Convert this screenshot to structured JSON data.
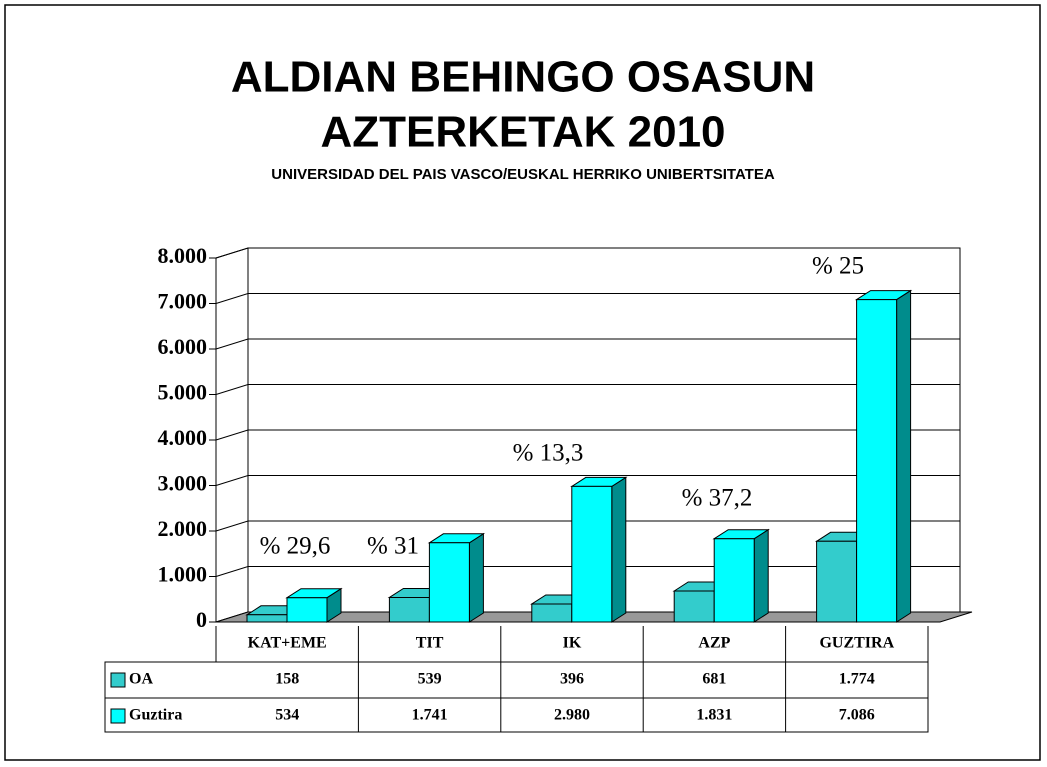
{
  "chart_data": {
    "type": "bar3d",
    "title": [
      "ALDIAN BEHINGO OSASUN",
      "AZTERKETAK 2010"
    ],
    "subtitle": "UNIVERSIDAD DEL PAIS VASCO/EUSKAL HERRIKO UNIBERTSITATEA",
    "categories": [
      "KAT+EME",
      "TIT",
      "IK",
      "AZP",
      "GUZTIRA"
    ],
    "series": [
      {
        "name": "OA",
        "color": "#33cccc",
        "values": [
          158,
          539,
          396,
          681,
          1774
        ],
        "value_labels": [
          "158",
          "539",
          "396",
          "681",
          "1.774"
        ]
      },
      {
        "name": "Guztira",
        "color": "#00ffff",
        "values": [
          534,
          1741,
          2980,
          1831,
          7086
        ],
        "value_labels": [
          "534",
          "1.741",
          "2.980",
          "1.831",
          "7.086"
        ]
      }
    ],
    "annotations": [
      "% 29,6",
      "% 31",
      "% 13,3",
      "% 37,2",
      "% 25"
    ],
    "ylim": [
      0,
      8000
    ],
    "yticks": [
      0,
      {
        "value": 1000,
        "label": "1.000"
      },
      {
        "value": 2000,
        "label": "2.000"
      },
      {
        "value": 3000,
        "label": "3.000"
      },
      {
        "value": 4000,
        "label": "4.000"
      },
      {
        "value": 5000,
        "label": "5.000"
      },
      {
        "value": 6000,
        "label": "6.000"
      },
      {
        "value": 7000,
        "label": "7.000"
      },
      {
        "value": 8000,
        "label": "8.000"
      }
    ],
    "grid": true
  }
}
